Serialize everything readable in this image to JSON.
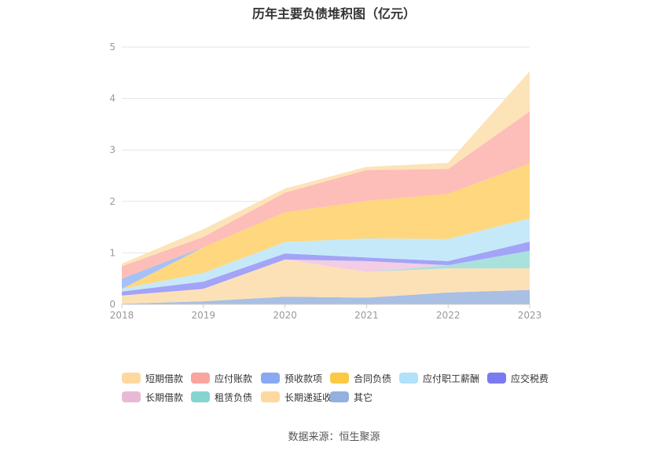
{
  "title": "历年主要负债堆积图（亿元）",
  "source": "数据来源：恒生聚源",
  "chart_data": {
    "type": "area",
    "stacked": true,
    "categories": [
      "2018",
      "2019",
      "2020",
      "2021",
      "2022",
      "2023"
    ],
    "y_ticks": [
      "0",
      "1",
      "2",
      "3",
      "4",
      "5"
    ],
    "ylim": [
      0,
      5
    ],
    "grid": true,
    "legend_position": "bottom",
    "series": [
      {
        "name": "其它",
        "color": "#a9bfe3",
        "values": [
          0.01,
          0.06,
          0.15,
          0.13,
          0.23,
          0.28
        ]
      },
      {
        "name": "长期递延收益",
        "color": "#fde1b6",
        "values": [
          0.16,
          0.24,
          0.72,
          0.5,
          0.47,
          0.42
        ]
      },
      {
        "name": "租赁负债",
        "color": "#a9e1dd",
        "values": [
          0.0,
          0.0,
          0.0,
          0.0,
          0.06,
          0.34
        ]
      },
      {
        "name": "长期借款",
        "color": "#f2cde3",
        "values": [
          0.0,
          0.0,
          0.0,
          0.21,
          0.0,
          0.0
        ]
      },
      {
        "name": "应交税费",
        "color": "#a3a3f7",
        "values": [
          0.08,
          0.14,
          0.12,
          0.07,
          0.08,
          0.18
        ]
      },
      {
        "name": "应付职工薪酬",
        "color": "#c6e9f9",
        "values": [
          0.05,
          0.17,
          0.22,
          0.37,
          0.43,
          0.45
        ]
      },
      {
        "name": "合同负债",
        "color": "#ffd77e",
        "values": [
          0.0,
          0.5,
          0.58,
          0.73,
          0.88,
          1.07
        ]
      },
      {
        "name": "预收款项",
        "color": "#a5c1f7",
        "values": [
          0.2,
          0.0,
          0.0,
          0.0,
          0.0,
          0.0
        ]
      },
      {
        "name": "应付账款",
        "color": "#fdbdb8",
        "values": [
          0.24,
          0.2,
          0.38,
          0.6,
          0.48,
          1.01
        ]
      },
      {
        "name": "短期借款",
        "color": "#fde3b8",
        "values": [
          0.05,
          0.15,
          0.08,
          0.06,
          0.12,
          0.78
        ]
      }
    ],
    "legend": [
      {
        "name": "短期借款",
        "color": "#fdd9a0"
      },
      {
        "name": "应付账款",
        "color": "#f9a59d"
      },
      {
        "name": "预收款项",
        "color": "#8aa8f2"
      },
      {
        "name": "合同负债",
        "color": "#fcc945"
      },
      {
        "name": "应付职工薪酬",
        "color": "#b0e2f9"
      },
      {
        "name": "应交税费",
        "color": "#7b7bf0"
      },
      {
        "name": "长期借款",
        "color": "#eab8d7"
      },
      {
        "name": "租赁负债",
        "color": "#86d4d0"
      },
      {
        "name": "长期递延收益",
        "color": "#fdd9a0"
      },
      {
        "name": "其它",
        "color": "#94b0df"
      }
    ]
  }
}
